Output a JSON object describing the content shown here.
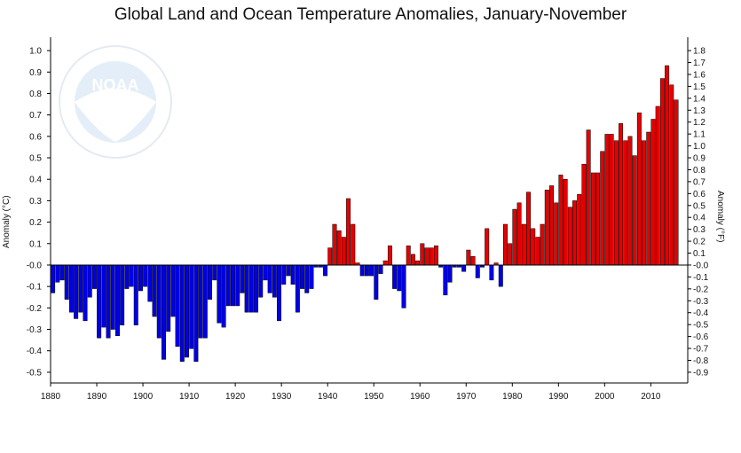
{
  "chart_data": {
    "type": "bar",
    "title": "Global Land and Ocean Temperature Anomalies, January-November",
    "ylabel": "Anomaly (°C)",
    "ylabel_right": "Anomaly (°F)",
    "xlabel": "",
    "x_ticks": [
      1880,
      1890,
      1900,
      1910,
      1920,
      1930,
      1940,
      1950,
      1960,
      1970,
      1980,
      1990,
      2000,
      2010
    ],
    "y_ticks_c": [
      "1.0",
      "0.9",
      "0.8",
      "0.7",
      "0.6",
      "0.5",
      "0.4",
      "0.3",
      "0.2",
      "0.1",
      "-0.0",
      "-0.1",
      "-0.2",
      "-0.3",
      "-0.4",
      "-0.5"
    ],
    "y_ticks_f": [
      "1.8",
      "1.7",
      "1.6",
      "1.5",
      "1.4",
      "1.3",
      "1.2",
      "1.1",
      "1.0",
      "0.9",
      "0.8",
      "0.7",
      "0.6",
      "0.5",
      "0.4",
      "0.3",
      "0.2",
      "0.1",
      "-0.0",
      "-0.1",
      "-0.2",
      "-0.3",
      "-0.4",
      "-0.5",
      "-0.6",
      "-0.7",
      "-0.8",
      "-0.9"
    ],
    "ylim_c": [
      -0.55,
      1.05
    ],
    "xlim": [
      1880,
      2018
    ],
    "start_year": 1880,
    "positive_color": "#e50000",
    "negative_color": "#0000e6",
    "values": [
      -0.13,
      -0.08,
      -0.07,
      -0.16,
      -0.22,
      -0.25,
      -0.22,
      -0.26,
      -0.15,
      -0.11,
      -0.34,
      -0.29,
      -0.34,
      -0.3,
      -0.33,
      -0.28,
      -0.11,
      -0.1,
      -0.28,
      -0.12,
      -0.1,
      -0.17,
      -0.24,
      -0.34,
      -0.44,
      -0.31,
      -0.24,
      -0.38,
      -0.45,
      -0.43,
      -0.39,
      -0.45,
      -0.34,
      -0.34,
      -0.16,
      -0.07,
      -0.27,
      -0.29,
      -0.19,
      -0.19,
      -0.19,
      -0.13,
      -0.22,
      -0.22,
      -0.22,
      -0.15,
      -0.07,
      -0.13,
      -0.15,
      -0.26,
      -0.09,
      -0.05,
      -0.09,
      -0.22,
      -0.11,
      -0.13,
      -0.11,
      -0.01,
      -0.01,
      -0.05,
      0.08,
      0.19,
      0.16,
      0.13,
      0.31,
      0.19,
      0.01,
      -0.05,
      -0.05,
      -0.05,
      -0.16,
      -0.04,
      0.02,
      0.09,
      -0.11,
      -0.12,
      -0.2,
      0.09,
      0.05,
      0.02,
      0.1,
      0.08,
      0.08,
      0.09,
      -0.01,
      -0.14,
      -0.08,
      -0.01,
      -0.01,
      -0.03,
      0.07,
      0.04,
      -0.06,
      -0.01,
      0.17,
      -0.07,
      0.01,
      -0.1,
      0.19,
      0.1,
      0.26,
      0.29,
      0.19,
      0.34,
      0.17,
      0.13,
      0.19,
      0.35,
      0.37,
      0.29,
      0.42,
      0.4,
      0.27,
      0.3,
      0.33,
      0.47,
      0.63,
      0.43,
      0.43,
      0.53,
      0.61,
      0.61,
      0.58,
      0.66,
      0.58,
      0.6,
      0.51,
      0.71,
      0.58,
      0.62,
      0.68,
      0.74,
      0.87,
      0.93,
      0.84,
      0.77
    ]
  },
  "watermark": {
    "logo_text": "NOAA",
    "ring_text": "NATIONAL OCEANIC AND ATMOSPHERIC ADMINISTRATION · U.S. DEPARTMENT OF COMMERCE"
  }
}
